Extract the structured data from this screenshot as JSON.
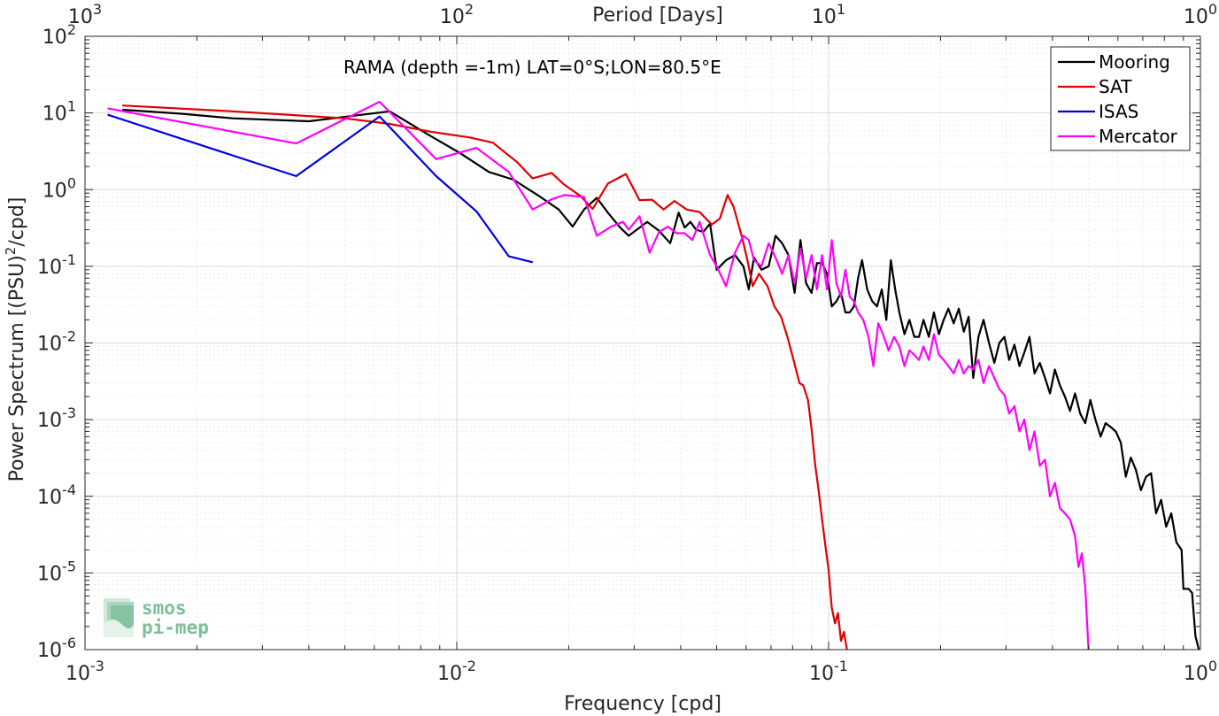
{
  "chart_data": {
    "type": "line",
    "title": "",
    "annotation": "RAMA (depth =-1m) LAT=0°S;LON=80.5°E",
    "xlabel": "Frequency [cpd]",
    "ylabel": "Power Spectrum [(PSU)2/cpd]",
    "ylabel_parts": {
      "base": "Power Spectrum [(PSU)",
      "sup": "2",
      "rest": "/cpd]"
    },
    "top_xlabel": "Period [Days]",
    "xscale": "log",
    "yscale": "log",
    "xlim": [
      0.001,
      1
    ],
    "ylim": [
      1e-06,
      100
    ],
    "x_ticks": [
      {
        "base": "10",
        "exp": "-3"
      },
      {
        "base": "10",
        "exp": "-2"
      },
      {
        "base": "10",
        "exp": "-1"
      },
      {
        "base": "10",
        "exp": "0"
      }
    ],
    "top_ticks": [
      {
        "base": "10",
        "exp": "3"
      },
      {
        "base": "10",
        "exp": "2"
      },
      {
        "base": "10",
        "exp": "1"
      },
      {
        "base": "10",
        "exp": "0"
      }
    ],
    "y_ticks": [
      {
        "base": "10",
        "exp": "2"
      },
      {
        "base": "10",
        "exp": "1"
      },
      {
        "base": "10",
        "exp": "0"
      },
      {
        "base": "10",
        "exp": "-1"
      },
      {
        "base": "10",
        "exp": "-2"
      },
      {
        "base": "10",
        "exp": "-3"
      },
      {
        "base": "10",
        "exp": "-4"
      },
      {
        "base": "10",
        "exp": "-5"
      },
      {
        "base": "10",
        "exp": "-6"
      }
    ],
    "grid": true,
    "legend_position": "top-right",
    "series": [
      {
        "name": "Mooring",
        "color": "#000000",
        "points": [
          [
            0.00126,
            11
          ],
          [
            0.0018,
            9.8
          ],
          [
            0.0025,
            8.5
          ],
          [
            0.004,
            7.8
          ],
          [
            0.0066,
            10.5
          ],
          [
            0.0085,
            5
          ],
          [
            0.0102,
            3
          ],
          [
            0.0122,
            1.7
          ],
          [
            0.0142,
            1.35
          ],
          [
            0.0165,
            0.85
          ],
          [
            0.0188,
            0.55
          ],
          [
            0.0205,
            0.33
          ],
          [
            0.022,
            0.55
          ],
          [
            0.0238,
            0.78
          ],
          [
            0.0255,
            0.5
          ],
          [
            0.0275,
            0.32
          ],
          [
            0.029,
            0.25
          ],
          [
            0.0305,
            0.3
          ],
          [
            0.0325,
            0.38
          ],
          [
            0.035,
            0.29
          ],
          [
            0.0375,
            0.2
          ],
          [
            0.0395,
            0.5
          ],
          [
            0.041,
            0.32
          ],
          [
            0.0425,
            0.38
          ],
          [
            0.044,
            0.3
          ],
          [
            0.046,
            0.28
          ],
          [
            0.048,
            0.36
          ],
          [
            0.05,
            0.09
          ],
          [
            0.053,
            0.12
          ],
          [
            0.056,
            0.14
          ],
          [
            0.059,
            0.1
          ],
          [
            0.061,
            0.05
          ],
          [
            0.063,
            0.13
          ],
          [
            0.066,
            0.09
          ],
          [
            0.069,
            0.1
          ],
          [
            0.072,
            0.25
          ],
          [
            0.075,
            0.2
          ],
          [
            0.078,
            0.14
          ],
          [
            0.081,
            0.045
          ],
          [
            0.084,
            0.22
          ],
          [
            0.087,
            0.06
          ],
          [
            0.09,
            0.045
          ],
          [
            0.093,
            0.11
          ],
          [
            0.096,
            0.11
          ],
          [
            0.099,
            0.08
          ],
          [
            0.102,
            0.03
          ],
          [
            0.105,
            0.035
          ],
          [
            0.108,
            0.045
          ],
          [
            0.111,
            0.025
          ],
          [
            0.114,
            0.025
          ],
          [
            0.117,
            0.03
          ],
          [
            0.12,
            0.07
          ],
          [
            0.123,
            0.12
          ],
          [
            0.127,
            0.05
          ],
          [
            0.131,
            0.035
          ],
          [
            0.135,
            0.03
          ],
          [
            0.139,
            0.05
          ],
          [
            0.143,
            0.02
          ],
          [
            0.147,
            0.12
          ],
          [
            0.151,
            0.05
          ],
          [
            0.155,
            0.025
          ],
          [
            0.16,
            0.013
          ],
          [
            0.165,
            0.02
          ],
          [
            0.17,
            0.012
          ],
          [
            0.175,
            0.012
          ],
          [
            0.18,
            0.02
          ],
          [
            0.186,
            0.012
          ],
          [
            0.192,
            0.025
          ],
          [
            0.198,
            0.013
          ],
          [
            0.204,
            0.02
          ],
          [
            0.21,
            0.028
          ],
          [
            0.217,
            0.018
          ],
          [
            0.224,
            0.028
          ],
          [
            0.231,
            0.014
          ],
          [
            0.238,
            0.022
          ],
          [
            0.245,
            0.0035
          ],
          [
            0.253,
            0.012
          ],
          [
            0.261,
            0.02
          ],
          [
            0.27,
            0.01
          ],
          [
            0.279,
            0.0055
          ],
          [
            0.288,
            0.01
          ],
          [
            0.297,
            0.012
          ],
          [
            0.306,
            0.006
          ],
          [
            0.316,
            0.0095
          ],
          [
            0.326,
            0.005
          ],
          [
            0.336,
            0.0075
          ],
          [
            0.347,
            0.012
          ],
          [
            0.358,
            0.004
          ],
          [
            0.37,
            0.0055
          ],
          [
            0.382,
            0.0035
          ],
          [
            0.394,
            0.0022
          ],
          [
            0.406,
            0.0045
          ],
          [
            0.419,
            0.0028
          ],
          [
            0.432,
            0.002
          ],
          [
            0.446,
            0.0013
          ],
          [
            0.46,
            0.0022
          ],
          [
            0.475,
            0.0012
          ],
          [
            0.49,
            0.0009
          ],
          [
            0.506,
            0.0018
          ],
          [
            0.522,
            0.001
          ],
          [
            0.539,
            0.0006
          ],
          [
            0.556,
            0.0009
          ],
          [
            0.574,
            0.0008
          ],
          [
            0.592,
            0.0007
          ],
          [
            0.611,
            0.0005
          ],
          [
            0.63,
            0.00018
          ],
          [
            0.65,
            0.00032
          ],
          [
            0.671,
            0.00022
          ],
          [
            0.692,
            0.00012
          ],
          [
            0.714,
            0.00018
          ],
          [
            0.737,
            0.0002
          ],
          [
            0.76,
            6e-05
          ],
          [
            0.784,
            9e-05
          ],
          [
            0.809,
            4e-05
          ],
          [
            0.835,
            6e-05
          ],
          [
            0.862,
            2.5e-05
          ],
          [
            0.89,
            2e-05
          ],
          [
            0.9,
            6.2e-06
          ],
          [
            0.93,
            6.2e-06
          ],
          [
            0.95,
            5.5e-06
          ],
          [
            0.97,
            1.5e-06
          ],
          [
            0.99,
            1e-06
          ]
        ]
      },
      {
        "name": "SAT",
        "color": "#e00000",
        "points": [
          [
            0.00126,
            12.5
          ],
          [
            0.0025,
            10.5
          ],
          [
            0.005,
            8.5
          ],
          [
            0.0066,
            7.2
          ],
          [
            0.0085,
            5.7
          ],
          [
            0.0108,
            4.8
          ],
          [
            0.0125,
            4.1
          ],
          [
            0.0145,
            2.3
          ],
          [
            0.016,
            1.4
          ],
          [
            0.018,
            1.65
          ],
          [
            0.0195,
            1.15
          ],
          [
            0.0215,
            0.83
          ],
          [
            0.0232,
            0.56
          ],
          [
            0.0255,
            1.2
          ],
          [
            0.0285,
            1.6
          ],
          [
            0.031,
            0.73
          ],
          [
            0.0335,
            0.74
          ],
          [
            0.036,
            0.55
          ],
          [
            0.0385,
            0.71
          ],
          [
            0.0415,
            0.55
          ],
          [
            0.045,
            0.51
          ],
          [
            0.0485,
            0.35
          ],
          [
            0.051,
            0.42
          ],
          [
            0.0535,
            0.85
          ],
          [
            0.0555,
            0.6
          ],
          [
            0.0585,
            0.24
          ],
          [
            0.0605,
            0.12
          ],
          [
            0.0625,
            0.055
          ],
          [
            0.065,
            0.08
          ],
          [
            0.0685,
            0.055
          ],
          [
            0.0715,
            0.03
          ],
          [
            0.0745,
            0.022
          ],
          [
            0.0775,
            0.012
          ],
          [
            0.0805,
            0.006
          ],
          [
            0.0835,
            0.003
          ],
          [
            0.0855,
            0.0028
          ],
          [
            0.088,
            0.0018
          ],
          [
            0.09,
            0.00075
          ],
          [
            0.092,
            0.00026
          ],
          [
            0.094,
            0.00012
          ],
          [
            0.096,
            5e-05
          ],
          [
            0.098,
            2.3e-05
          ],
          [
            0.1,
            1.1e-05
          ],
          [
            0.102,
            3.5e-06
          ],
          [
            0.104,
            2.2e-06
          ],
          [
            0.106,
            3e-06
          ],
          [
            0.108,
            1.3e-06
          ],
          [
            0.11,
            1.7e-06
          ],
          [
            0.112,
            1e-06
          ]
        ]
      },
      {
        "name": "ISAS",
        "color": "#0000e0",
        "points": [
          [
            0.00115,
            9.5
          ],
          [
            0.0037,
            1.5
          ],
          [
            0.0062,
            9
          ],
          [
            0.0088,
            1.5
          ],
          [
            0.0113,
            0.52
          ],
          [
            0.0138,
            0.135
          ],
          [
            0.016,
            0.113
          ]
        ]
      },
      {
        "name": "Mercator",
        "color": "#ff00ff",
        "points": [
          [
            0.00115,
            11.5
          ],
          [
            0.0037,
            4
          ],
          [
            0.0062,
            14
          ],
          [
            0.0088,
            2.5
          ],
          [
            0.0113,
            3.5
          ],
          [
            0.0138,
            1.7
          ],
          [
            0.016,
            0.55
          ],
          [
            0.018,
            0.75
          ],
          [
            0.0195,
            0.85
          ],
          [
            0.022,
            0.8
          ],
          [
            0.0238,
            0.25
          ],
          [
            0.026,
            0.33
          ],
          [
            0.028,
            0.38
          ],
          [
            0.029,
            0.3
          ],
          [
            0.031,
            0.45
          ],
          [
            0.033,
            0.15
          ],
          [
            0.035,
            0.28
          ],
          [
            0.037,
            0.33
          ],
          [
            0.039,
            0.27
          ],
          [
            0.041,
            0.27
          ],
          [
            0.043,
            0.22
          ],
          [
            0.045,
            0.38
          ],
          [
            0.048,
            0.14
          ],
          [
            0.05,
            0.1
          ],
          [
            0.053,
            0.055
          ],
          [
            0.056,
            0.15
          ],
          [
            0.059,
            0.25
          ],
          [
            0.061,
            0.22
          ],
          [
            0.063,
            0.12
          ],
          [
            0.066,
            0.1
          ],
          [
            0.069,
            0.2
          ],
          [
            0.072,
            0.13
          ],
          [
            0.075,
            0.08
          ],
          [
            0.078,
            0.14
          ],
          [
            0.081,
            0.06
          ],
          [
            0.084,
            0.17
          ],
          [
            0.087,
            0.07
          ],
          [
            0.09,
            0.14
          ],
          [
            0.093,
            0.05
          ],
          [
            0.096,
            0.14
          ],
          [
            0.099,
            0.05
          ],
          [
            0.102,
            0.22
          ],
          [
            0.105,
            0.06
          ],
          [
            0.108,
            0.04
          ],
          [
            0.111,
            0.09
          ],
          [
            0.114,
            0.04
          ],
          [
            0.117,
            0.035
          ],
          [
            0.12,
            0.025
          ],
          [
            0.124,
            0.02
          ],
          [
            0.128,
            0.012
          ],
          [
            0.132,
            0.005
          ],
          [
            0.136,
            0.018
          ],
          [
            0.14,
            0.013
          ],
          [
            0.145,
            0.008
          ],
          [
            0.15,
            0.012
          ],
          [
            0.155,
            0.009
          ],
          [
            0.16,
            0.005
          ],
          [
            0.165,
            0.008
          ],
          [
            0.17,
            0.007
          ],
          [
            0.175,
            0.006
          ],
          [
            0.18,
            0.009
          ],
          [
            0.186,
            0.006
          ],
          [
            0.192,
            0.013
          ],
          [
            0.198,
            0.007
          ],
          [
            0.204,
            0.006
          ],
          [
            0.21,
            0.005
          ],
          [
            0.217,
            0.004
          ],
          [
            0.224,
            0.006
          ],
          [
            0.231,
            0.004
          ],
          [
            0.238,
            0.005
          ],
          [
            0.245,
            0.0045
          ],
          [
            0.253,
            0.006
          ],
          [
            0.261,
            0.003
          ],
          [
            0.27,
            0.005
          ],
          [
            0.279,
            0.0035
          ],
          [
            0.288,
            0.0025
          ],
          [
            0.297,
            0.0021
          ],
          [
            0.306,
            0.0012
          ],
          [
            0.316,
            0.0015
          ],
          [
            0.326,
            0.0007
          ],
          [
            0.336,
            0.001
          ],
          [
            0.347,
            0.0004
          ],
          [
            0.358,
            0.0007
          ],
          [
            0.37,
            0.00025
          ],
          [
            0.382,
            0.0003
          ],
          [
            0.394,
            0.0001
          ],
          [
            0.406,
            0.00015
          ],
          [
            0.419,
            7e-05
          ],
          [
            0.432,
            6e-05
          ],
          [
            0.446,
            5e-05
          ],
          [
            0.46,
            3e-05
          ],
          [
            0.47,
            1.2e-05
          ],
          [
            0.48,
            1.8e-05
          ],
          [
            0.49,
            6.5e-06
          ],
          [
            0.5,
            1e-06
          ]
        ]
      }
    ]
  }
}
